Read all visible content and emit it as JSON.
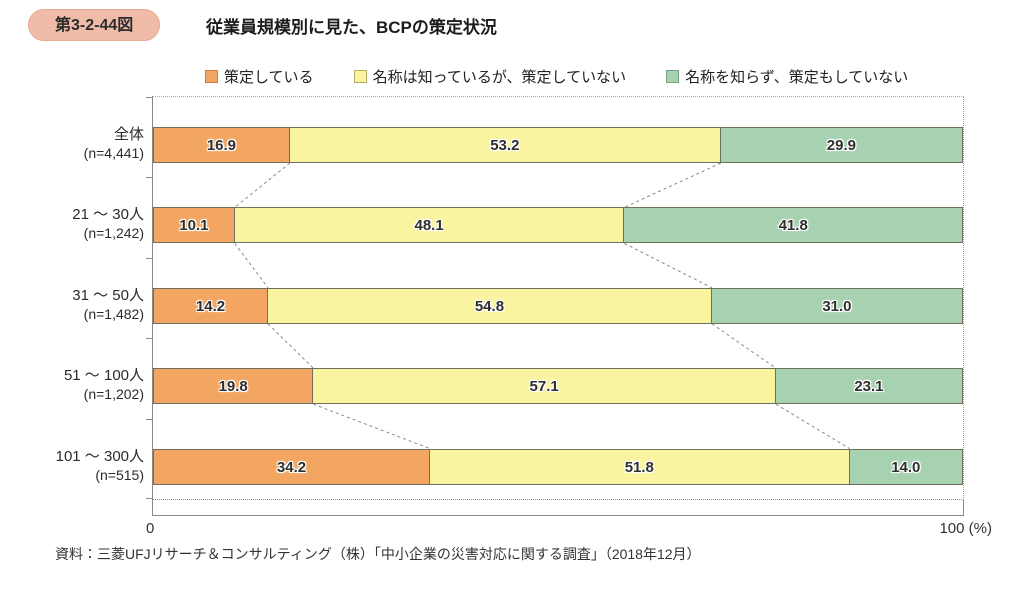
{
  "figure": {
    "badge": "第3-2-44図",
    "title": "従業員規模別に見た、BCPの策定状況",
    "source": "資料：三菱UFJリサーチ＆コンサルティング（株）「中小企業の災害対応に関する調査」（2018年12月）"
  },
  "colors": {
    "badge_bg": "#f0bca9",
    "orange": "#f3a662",
    "yellow": "#faf4a1",
    "green": "#a7d2b1",
    "bar_border": "#70705f",
    "axis": "#888888",
    "connector": "#8a8a8a"
  },
  "chart_data": {
    "type": "bar",
    "variant": "horizontal-stacked-100pct",
    "grid": false,
    "legend_position": "top",
    "xlim": [
      0,
      100
    ],
    "x_tick_labels": [
      "0",
      "100 (%)"
    ],
    "categories": [
      {
        "label": "全体",
        "n": "(n=4,441)"
      },
      {
        "label": "21 ～ 30人",
        "n": "(n=1,242)"
      },
      {
        "label": "31 ～ 50人",
        "n": "(n=1,482)"
      },
      {
        "label": "51 ～ 100人",
        "n": "(n=1,202)"
      },
      {
        "label": "101 ～ 300人",
        "n": "(n=515)"
      }
    ],
    "series": [
      {
        "name": "策定している",
        "color": "#f3a662",
        "swatch_border": "#c9813d",
        "values": [
          "16.9",
          "10.1",
          "14.2",
          "19.8",
          "34.2"
        ]
      },
      {
        "name": "名称は知っているが、策定していない",
        "color": "#faf4a1",
        "swatch_border": "#b5ad64",
        "values": [
          "53.2",
          "48.1",
          "54.8",
          "57.1",
          "51.8"
        ]
      },
      {
        "name": "名称を知らず、策定もしていない",
        "color": "#a7d2b1",
        "swatch_border": "#74a383",
        "values": [
          "29.9",
          "41.8",
          "31.0",
          "23.1",
          "14.0"
        ]
      }
    ]
  }
}
